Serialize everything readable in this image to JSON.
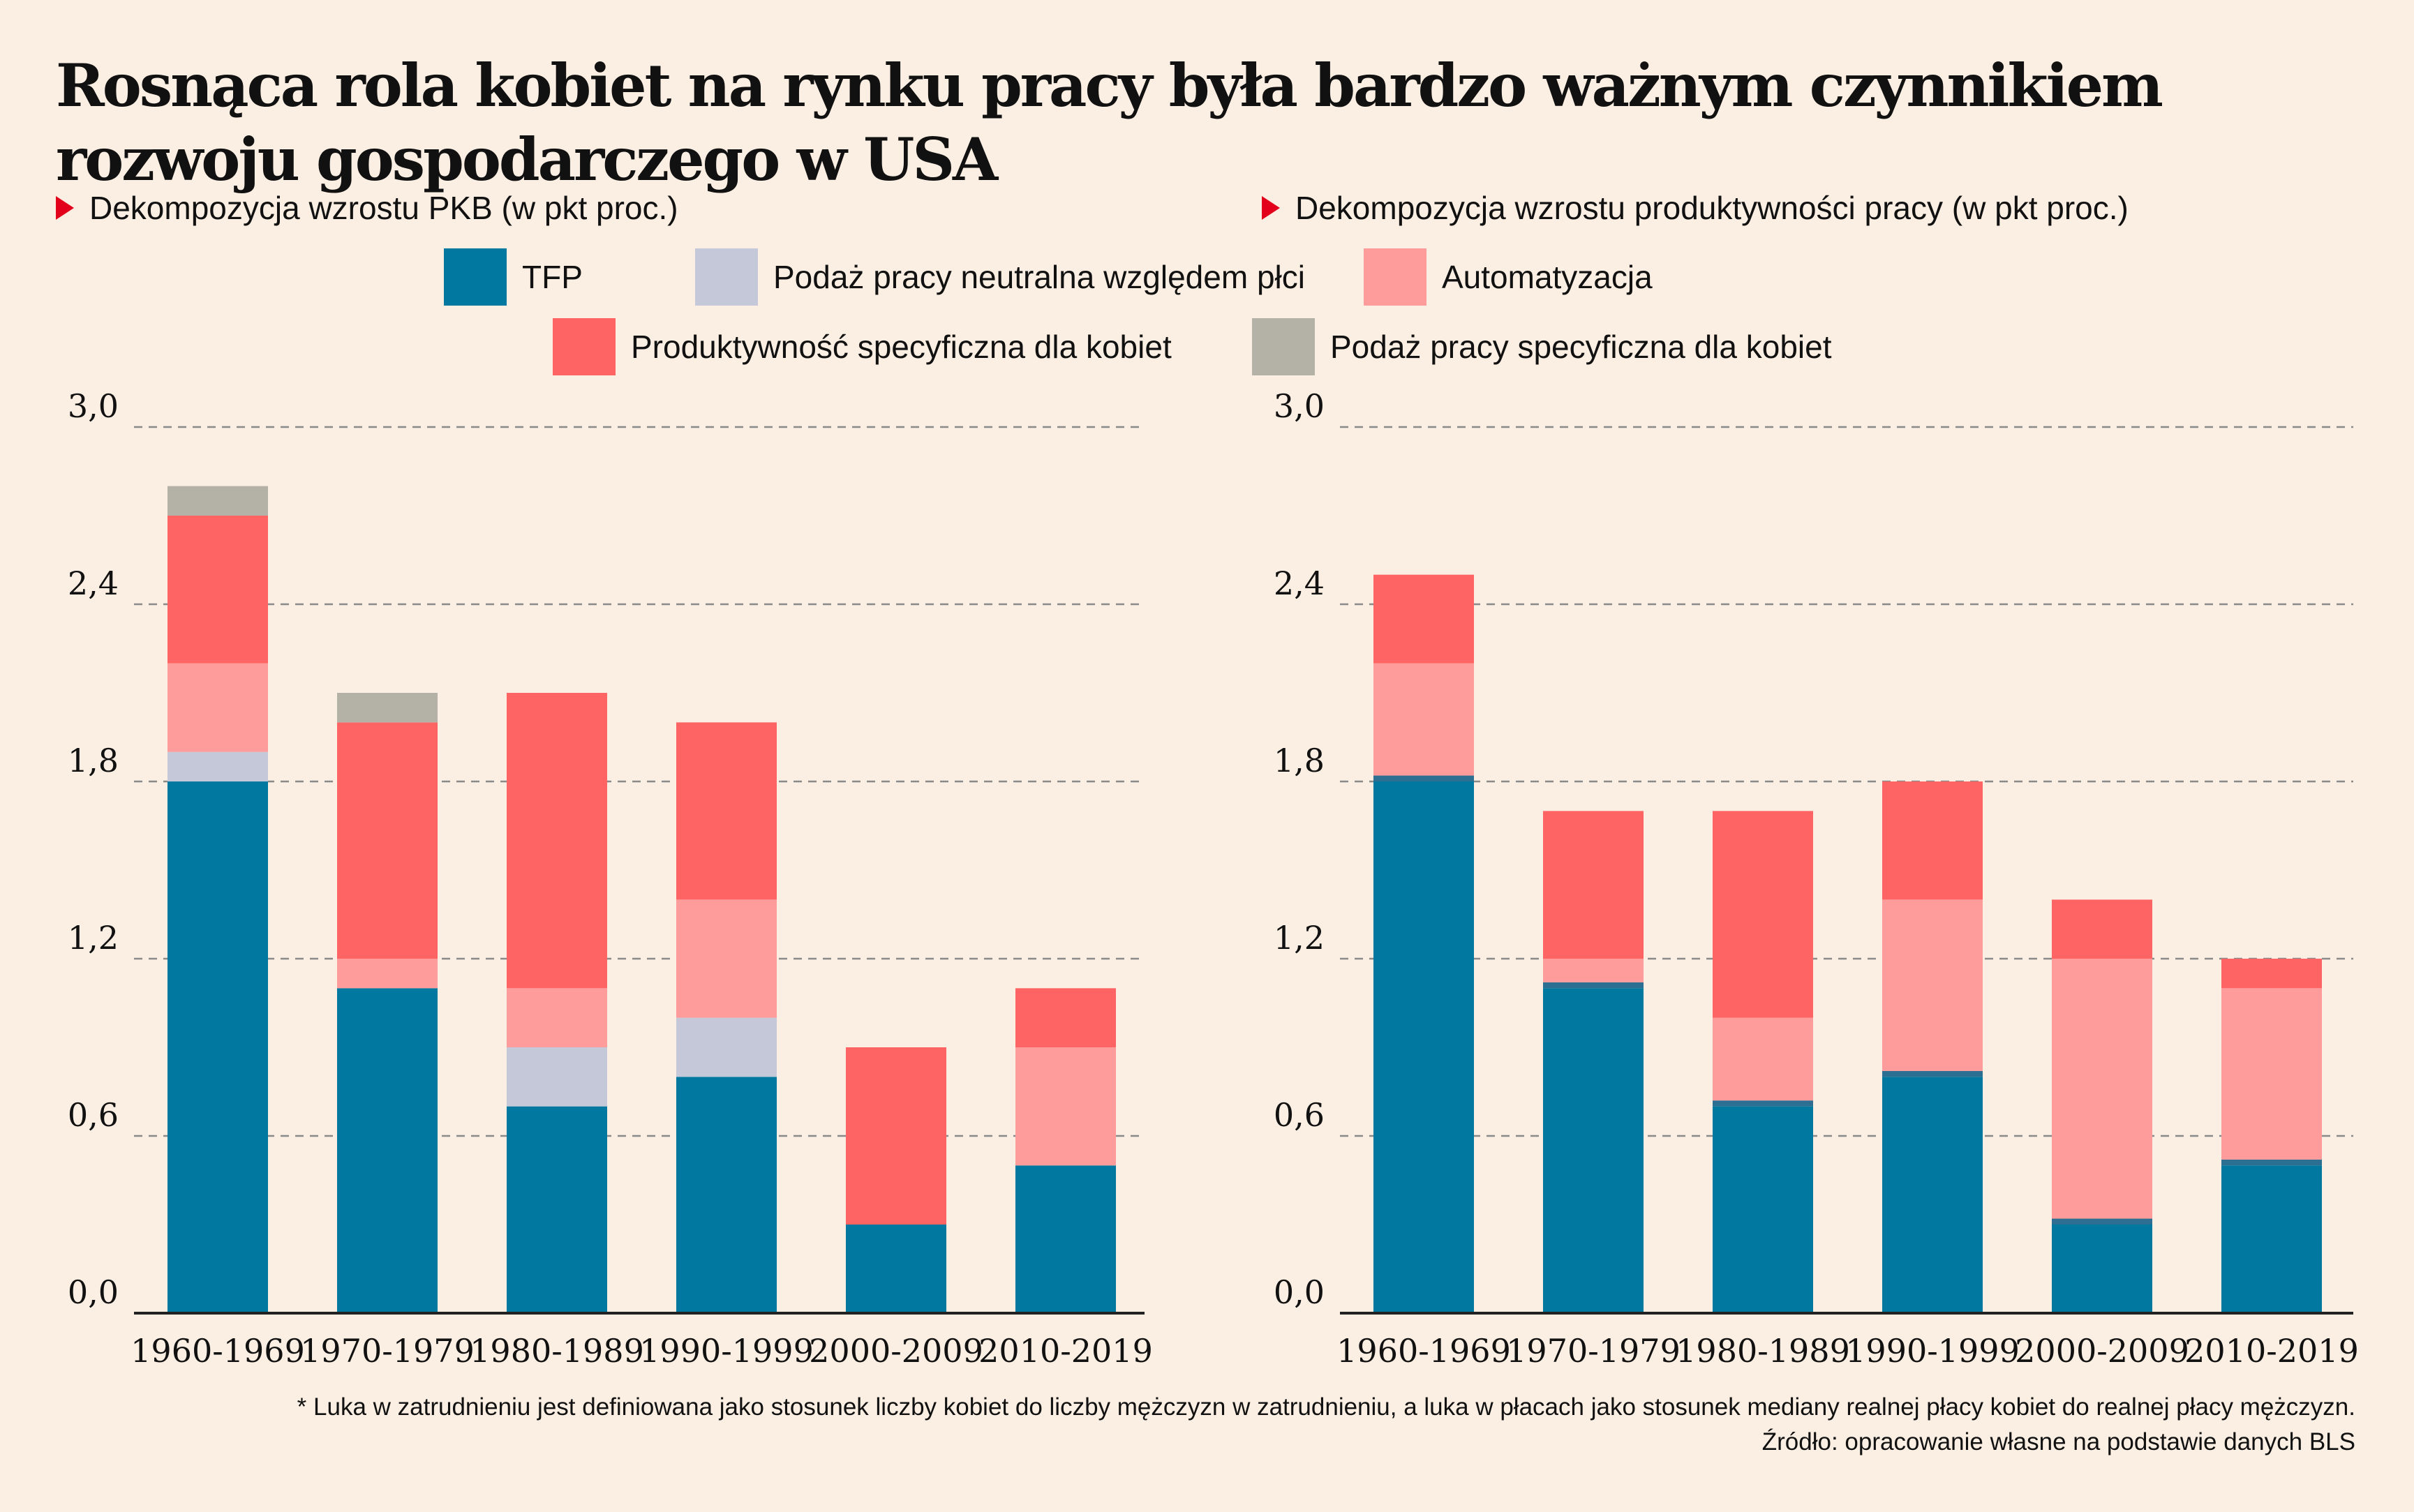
{
  "title": "Rosnąca rola kobiet na rynku pracy była bardzo ważnym czynnikiem rozwoju gospodarczego w USA",
  "legend": [
    {
      "name": "TFP",
      "color": "#00789f"
    },
    {
      "name": "Podaż pracy neutralna względem płci",
      "color": "#c4c8d8"
    },
    {
      "name": "Automatyzacja",
      "color": "#fe9b9b"
    },
    {
      "name": "Produktywność specyficzna dla kobiet",
      "color": "#fe6464"
    },
    {
      "name": "Podaż pracy specyficzna dla kobiet",
      "color": "#b4b2a6"
    }
  ],
  "footnote": {
    "note": "* Luka w zatrudnieniu jest definiowana jako stosunek liczby kobiet do liczby mężczyzn w zatrudnieniu, a luka w płacach jako stosunek mediany realnej płacy kobiet do realnej płacy mężczyzn.",
    "source": "Źródło: opracowanie własne na podstawie danych BLS"
  },
  "chart_data": [
    {
      "type": "bar",
      "stacked": true,
      "title": "Dekompozycja wzrostu PKB (w pkt proc.)",
      "categories": [
        "1960-1969",
        "1970-1979",
        "1980-1989",
        "1990-1999",
        "2000-2009",
        "2010-2019"
      ],
      "ylim": [
        0,
        3.0
      ],
      "yticks": [
        "0,0",
        "0,6",
        "1,2",
        "1,8",
        "2,4",
        "3,0"
      ],
      "grid": true,
      "series": [
        {
          "name": "TFP",
          "color": "#00789f",
          "values": [
            1.8,
            1.1,
            0.7,
            0.8,
            0.3,
            0.5
          ]
        },
        {
          "name": "Podaż pracy neutralna względem płci",
          "color": "#c4c8d8",
          "values": [
            0.1,
            0.0,
            0.2,
            0.2,
            0.0,
            0.0
          ]
        },
        {
          "name": "Automatyzacja",
          "color": "#fe9b9b",
          "values": [
            0.3,
            0.1,
            0.2,
            0.4,
            0.0,
            0.4
          ]
        },
        {
          "name": "Produktywność specyficzna dla kobiet",
          "color": "#fe6464",
          "values": [
            0.5,
            0.8,
            1.0,
            0.6,
            0.6,
            0.2
          ]
        },
        {
          "name": "Podaż pracy specyficzna dla kobiet",
          "color": "#b4b2a6",
          "values": [
            0.1,
            0.1,
            0.0,
            0.0,
            0.0,
            0.0
          ]
        }
      ]
    },
    {
      "type": "bar",
      "stacked": true,
      "title": "Dekompozycja wzrostu produktywności pracy (w pkt proc.)",
      "categories": [
        "1960-1969",
        "1970-1979",
        "1980-1989",
        "1990-1999",
        "2000-2009",
        "2010-2019"
      ],
      "ylim": [
        0,
        3.0
      ],
      "yticks": [
        "0,0",
        "0,6",
        "1,2",
        "1,8",
        "2,4",
        "3,0"
      ],
      "grid": true,
      "series": [
        {
          "name": "TFP",
          "color": "#00789f",
          "values": [
            1.8,
            1.1,
            0.7,
            0.8,
            0.3,
            0.5
          ]
        },
        {
          "name": "Podaż pracy neutralna względem płci",
          "color": "#2c6f93",
          "values": [
            0.02,
            0.02,
            0.02,
            0.02,
            0.02,
            0.02
          ]
        },
        {
          "name": "Automatyzacja",
          "color": "#fe9b9b",
          "values": [
            0.38,
            0.08,
            0.28,
            0.58,
            0.88,
            0.58
          ]
        },
        {
          "name": "Produktywność specyficzna dla kobiet",
          "color": "#fe6464",
          "values": [
            0.3,
            0.5,
            0.7,
            0.4,
            0.2,
            0.1
          ]
        },
        {
          "name": "Podaż pracy specyficzna dla kobiet",
          "color": "#b4b2a6",
          "values": [
            0,
            0,
            0,
            0,
            0,
            0
          ]
        }
      ]
    }
  ]
}
